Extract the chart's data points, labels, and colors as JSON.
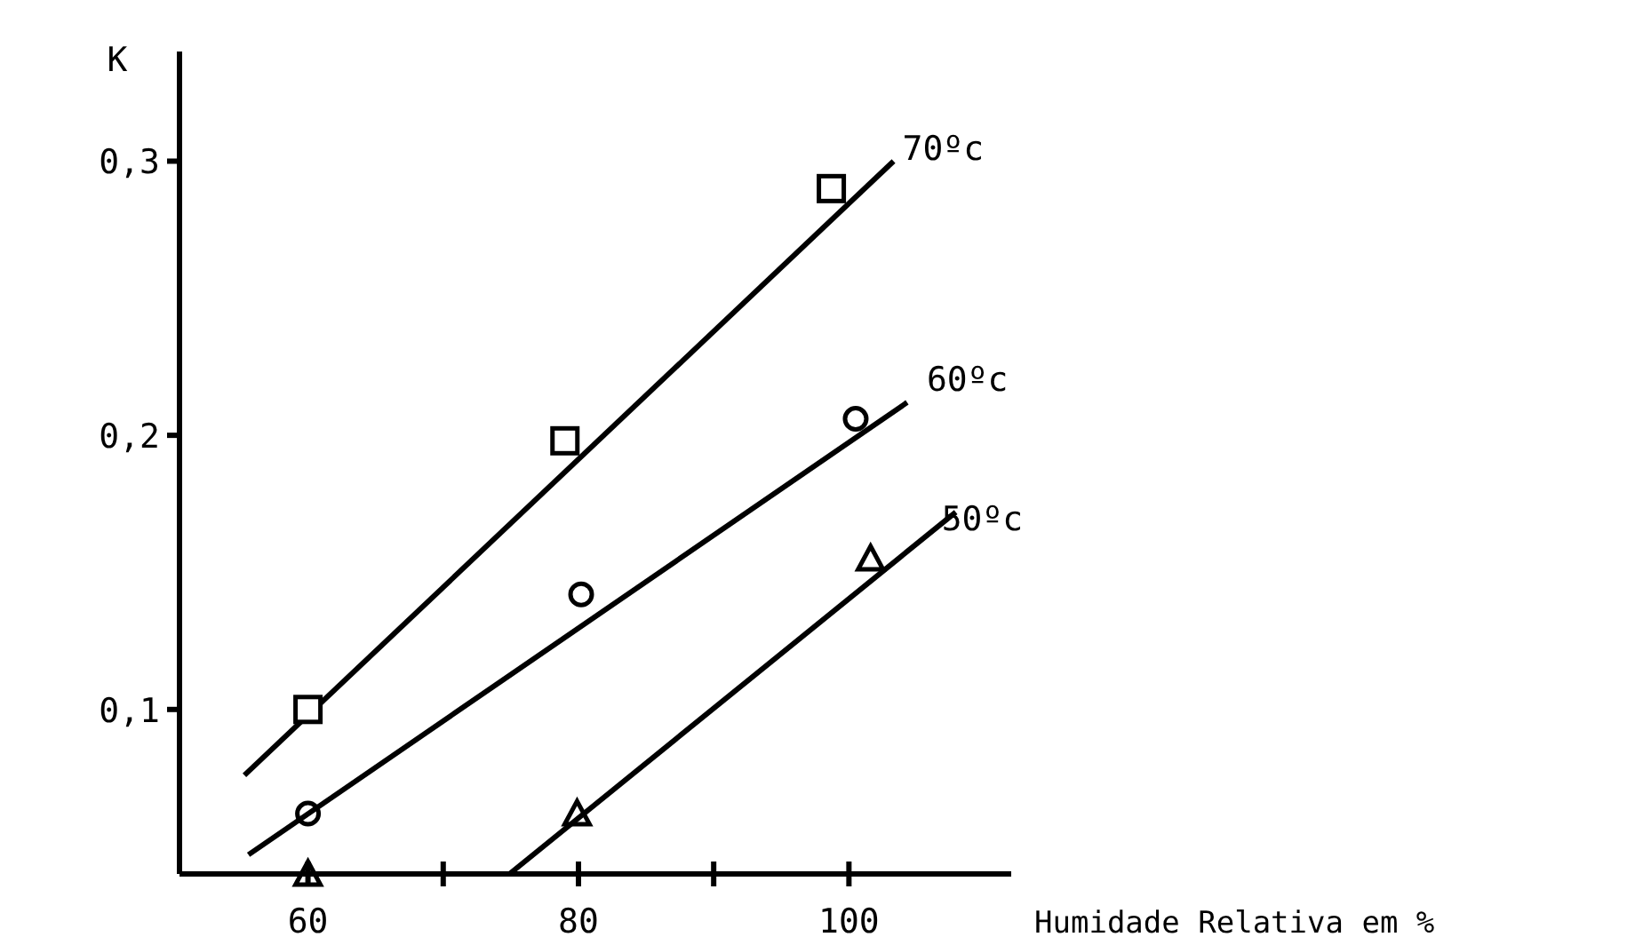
{
  "chart_data": {
    "type": "scatter",
    "xlabel": "Humidade Relativa em %",
    "ylabel": "K",
    "xlim": [
      50.5,
      112
    ],
    "ylim": [
      0.04,
      0.34
    ],
    "xticks": [
      60,
      {
        "value": 70,
        "label": null
      },
      80,
      {
        "value": 90,
        "label": null
      },
      100
    ],
    "yticks": [
      {
        "value": 0.1,
        "label": "0,1"
      },
      {
        "value": 0.2,
        "label": "0,2"
      },
      {
        "value": 0.3,
        "label": "0,3"
      }
    ],
    "grid": false,
    "series": [
      {
        "name": "70ºc",
        "marker": "square",
        "color": "#000000",
        "x": [
          60,
          79,
          98.7
        ],
        "values": [
          0.1,
          0.198,
          0.29
        ]
      },
      {
        "type": "line",
        "marker": "none",
        "line_style": "solid",
        "color": "#000000",
        "x": [
          55.3,
          103.3
        ],
        "values": [
          0.076,
          0.3
        ]
      },
      {
        "name": "60ºc",
        "marker": "circle",
        "color": "#000000",
        "x": [
          60,
          80.2,
          100.5
        ],
        "values": [
          0.062,
          0.142,
          0.206
        ]
      },
      {
        "type": "line",
        "marker": "none",
        "line_style": "solid",
        "color": "#000000",
        "x": [
          55.6,
          104.3
        ],
        "values": [
          0.047,
          0.212
        ]
      },
      {
        "name": "50ºc",
        "marker": "triangle",
        "color": "#000000",
        "x": [
          60,
          79.9,
          101.6
        ],
        "values": [
          0.04,
          0.062,
          0.155
        ]
      },
      {
        "type": "line",
        "marker": "none",
        "line_style": "solid",
        "color": "#000000",
        "x": [
          74.9,
          107.9
        ],
        "values": [
          0.04,
          0.172
        ]
      }
    ]
  }
}
